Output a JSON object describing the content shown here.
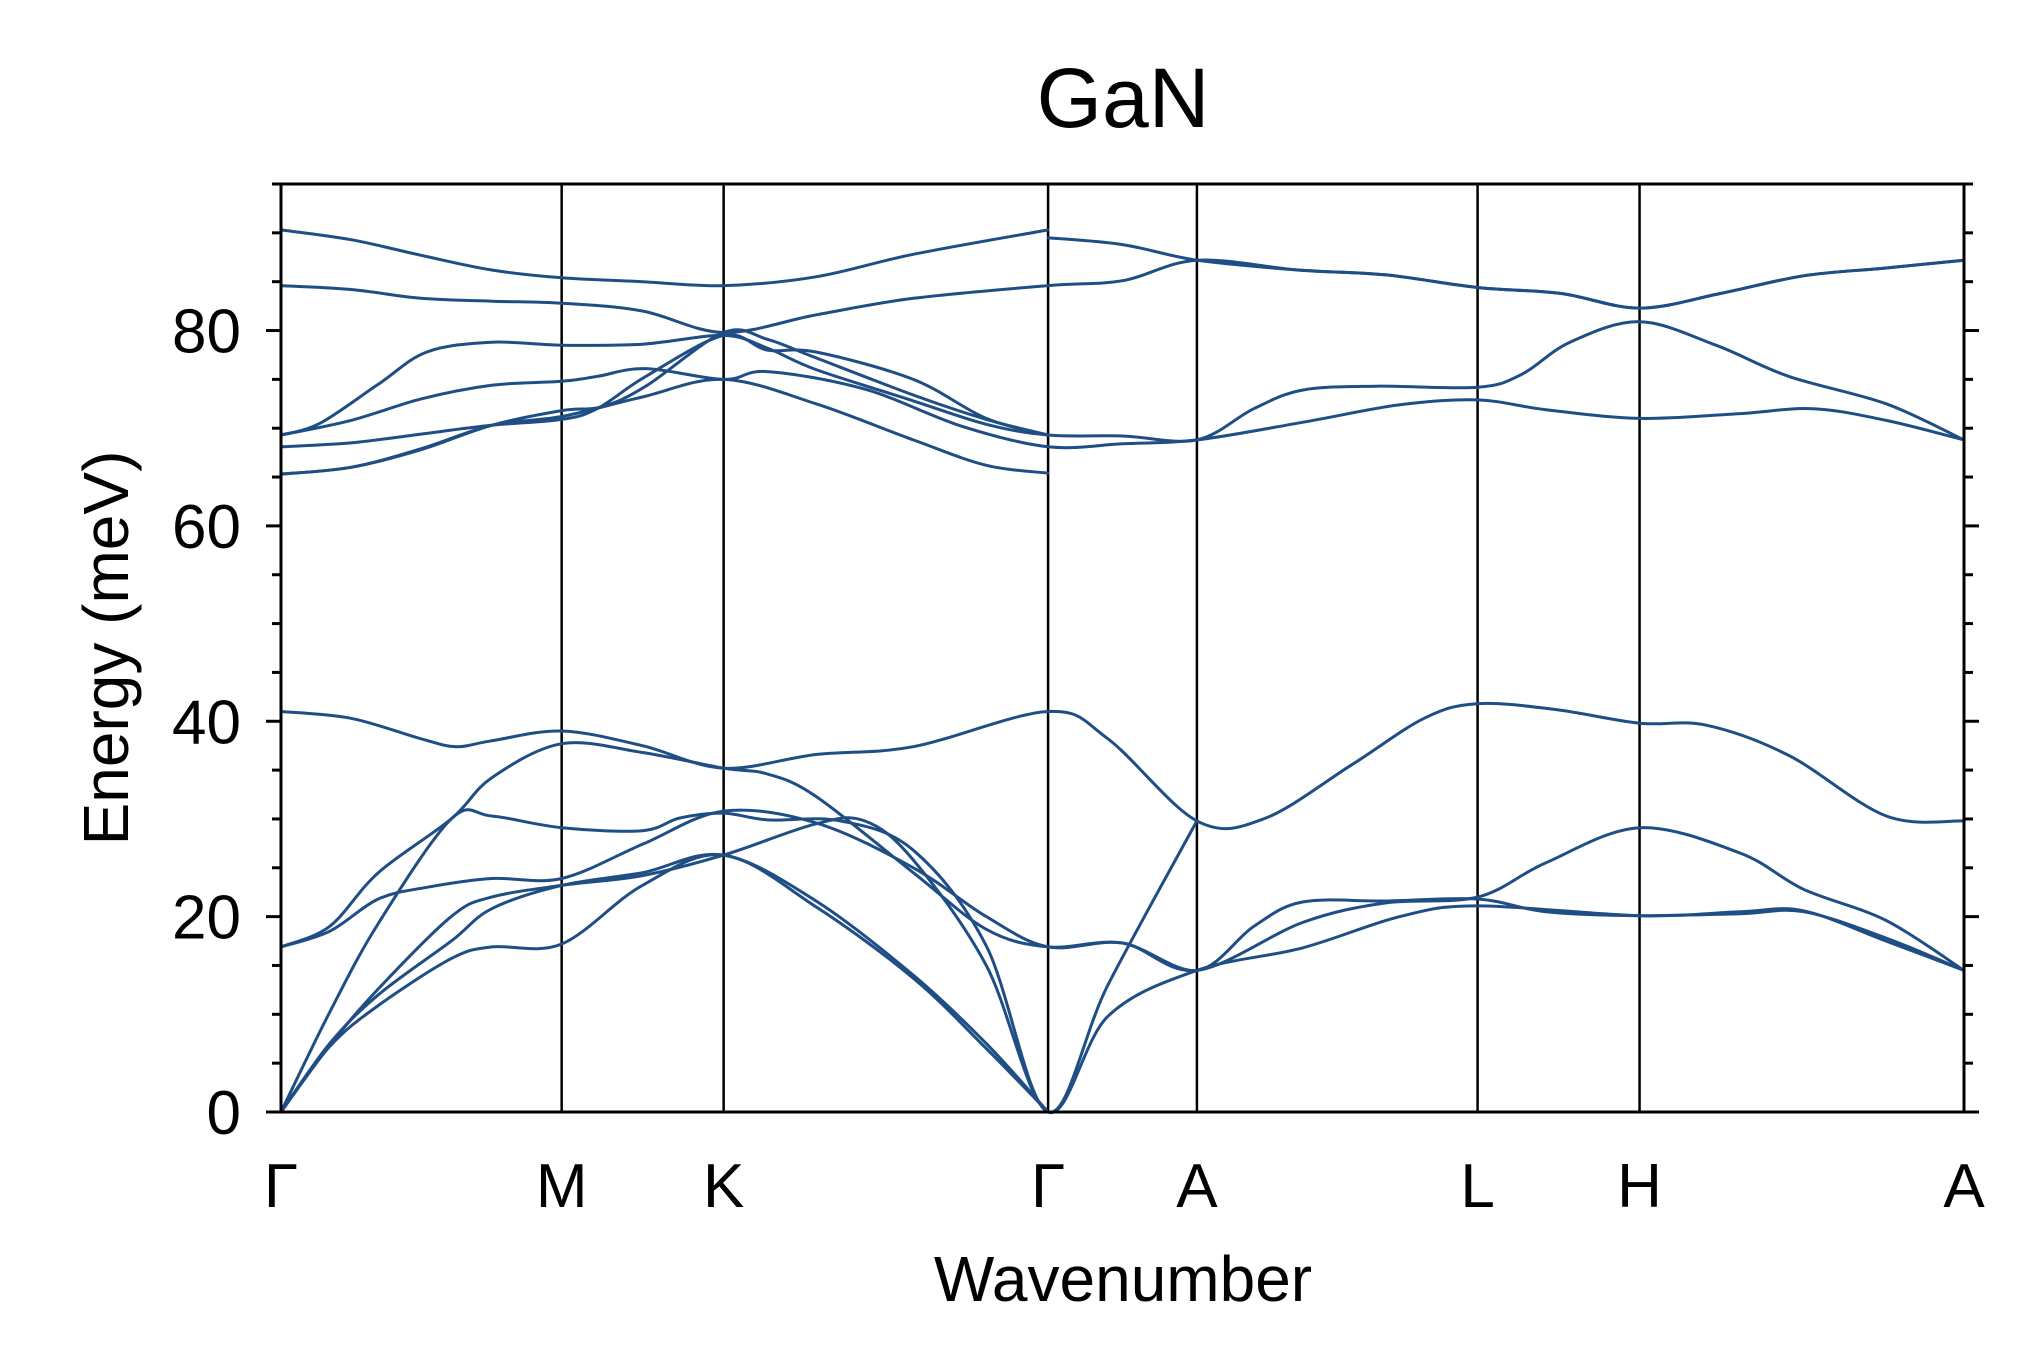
{
  "chart_data": {
    "type": "line",
    "title": "GaN",
    "xlabel": "Wavenumber",
    "ylabel": "Energy (meV)",
    "ylim": [
      0,
      95
    ],
    "yticks": [
      0,
      20,
      40,
      60,
      80
    ],
    "minor_ytick_step": 5,
    "grid": false,
    "line_color": "#1f4e85",
    "high_symmetry_points": [
      {
        "label": "Γ",
        "x": 0
      },
      {
        "label": "M",
        "x": 0.577
      },
      {
        "label": "K",
        "x": 0.91
      },
      {
        "label": "Γ",
        "x": 1.577
      },
      {
        "label": "A",
        "x": 1.883
      },
      {
        "label": "L",
        "x": 2.46
      },
      {
        "label": "H",
        "x": 2.793
      },
      {
        "label": "A",
        "x": 3.46
      }
    ],
    "series": [
      {
        "values": [
          [
            0,
            90.3
          ],
          [
            0.144,
            89.3
          ],
          [
            0.288,
            87.7
          ],
          [
            0.433,
            86.2
          ],
          [
            0.577,
            85.4
          ],
          [
            0.743,
            85.0
          ],
          [
            0.91,
            84.6
          ],
          [
            1.1,
            85.5
          ],
          [
            1.3,
            87.8
          ],
          [
            1.577,
            90.3
          ],
          [
            1.577,
            89.5
          ],
          [
            1.73,
            88.8
          ],
          [
            1.883,
            87.2
          ],
          [
            2.09,
            86.2
          ],
          [
            2.27,
            85.7
          ],
          [
            2.46,
            84.4
          ],
          [
            2.63,
            83.8
          ],
          [
            2.793,
            82.3
          ],
          [
            2.96,
            83.8
          ],
          [
            3.13,
            85.6
          ],
          [
            3.3,
            86.4
          ],
          [
            3.46,
            87.2
          ]
        ]
      },
      {
        "values": [
          [
            0,
            84.6
          ],
          [
            0.144,
            84.2
          ],
          [
            0.288,
            83.3
          ],
          [
            0.433,
            83.0
          ],
          [
            0.577,
            82.8
          ],
          [
            0.743,
            82.0
          ],
          [
            0.91,
            79.8
          ],
          [
            1.1,
            81.6
          ],
          [
            1.3,
            83.3
          ],
          [
            1.577,
            84.6
          ],
          [
            1.73,
            85.1
          ],
          [
            1.883,
            87.2
          ],
          [
            2.09,
            86.2
          ],
          [
            2.27,
            85.7
          ],
          [
            2.46,
            84.4
          ],
          [
            2.63,
            83.8
          ],
          [
            2.793,
            82.3
          ],
          [
            2.96,
            83.8
          ],
          [
            3.13,
            85.6
          ],
          [
            3.3,
            86.4
          ],
          [
            3.46,
            87.2
          ]
        ]
      },
      {
        "values": [
          [
            0,
            69.3
          ],
          [
            0.08,
            70.5
          ],
          [
            0.2,
            74.5
          ],
          [
            0.3,
            77.8
          ],
          [
            0.433,
            78.8
          ],
          [
            0.577,
            78.5
          ],
          [
            0.743,
            78.6
          ],
          [
            0.91,
            79.5
          ],
          [
            1.0,
            78.2
          ],
          [
            1.1,
            76.0
          ],
          [
            1.3,
            72.8
          ],
          [
            1.45,
            70.4
          ],
          [
            1.577,
            69.3
          ],
          [
            1.73,
            69.2
          ],
          [
            1.883,
            68.8
          ],
          [
            2.0,
            72.0
          ],
          [
            2.1,
            73.9
          ],
          [
            2.25,
            74.3
          ],
          [
            2.46,
            74.2
          ],
          [
            2.55,
            75.5
          ],
          [
            2.65,
            78.8
          ],
          [
            2.793,
            80.9
          ],
          [
            2.95,
            78.5
          ],
          [
            3.1,
            75.3
          ],
          [
            3.3,
            72.5
          ],
          [
            3.46,
            68.8
          ]
        ]
      },
      {
        "values": [
          [
            0,
            69.3
          ],
          [
            0.144,
            70.8
          ],
          [
            0.288,
            73.0
          ],
          [
            0.433,
            74.4
          ],
          [
            0.577,
            74.8
          ],
          [
            0.65,
            75.3
          ],
          [
            0.75,
            76.1
          ],
          [
            0.91,
            75.0
          ],
          [
            1.0,
            75.8
          ],
          [
            1.2,
            74.0
          ],
          [
            1.4,
            70.2
          ],
          [
            1.577,
            68.1
          ],
          [
            1.73,
            68.4
          ],
          [
            1.883,
            68.8
          ],
          [
            2.1,
            70.6
          ],
          [
            2.3,
            72.4
          ],
          [
            2.46,
            72.9
          ],
          [
            2.6,
            71.9
          ],
          [
            2.793,
            71.0
          ],
          [
            3.0,
            71.5
          ],
          [
            3.15,
            72.0
          ],
          [
            3.3,
            70.8
          ],
          [
            3.46,
            68.8
          ]
        ]
      },
      {
        "values": [
          [
            0,
            68.1
          ],
          [
            0.144,
            68.5
          ],
          [
            0.288,
            69.4
          ],
          [
            0.433,
            70.3
          ],
          [
            0.577,
            70.9
          ],
          [
            0.65,
            72.0
          ],
          [
            0.75,
            75.3
          ],
          [
            0.91,
            79.5
          ],
          [
            1.0,
            78.0
          ],
          [
            1.1,
            77.8
          ],
          [
            1.3,
            75.0
          ],
          [
            1.45,
            71.0
          ],
          [
            1.577,
            69.3
          ]
        ]
      },
      {
        "values": [
          [
            0,
            65.3
          ],
          [
            0.144,
            66.0
          ],
          [
            0.288,
            67.8
          ],
          [
            0.433,
            70.3
          ],
          [
            0.577,
            71.8
          ],
          [
            0.66,
            72.2
          ],
          [
            0.75,
            74.3
          ],
          [
            0.91,
            79.8
          ],
          [
            1.0,
            79.1
          ],
          [
            1.1,
            77.2
          ],
          [
            1.3,
            73.4
          ],
          [
            1.45,
            70.9
          ],
          [
            1.577,
            69.3
          ]
        ]
      },
      {
        "values": [
          [
            0,
            65.3
          ],
          [
            0.144,
            66.0
          ],
          [
            0.288,
            67.9
          ],
          [
            0.433,
            70.3
          ],
          [
            0.577,
            71.2
          ],
          [
            0.743,
            73.2
          ],
          [
            0.91,
            75.0
          ],
          [
            1.1,
            72.5
          ],
          [
            1.3,
            68.8
          ],
          [
            1.45,
            66.2
          ],
          [
            1.577,
            65.4
          ]
        ]
      },
      {
        "values": [
          [
            0,
            41.0
          ],
          [
            0.144,
            40.3
          ],
          [
            0.288,
            38.2
          ],
          [
            0.36,
            37.4
          ],
          [
            0.433,
            38.0
          ],
          [
            0.577,
            39.0
          ],
          [
            0.743,
            37.5
          ],
          [
            0.91,
            35.2
          ],
          [
            1.1,
            36.6
          ],
          [
            1.3,
            37.4
          ],
          [
            1.577,
            41.0
          ],
          [
            1.7,
            38.2
          ],
          [
            1.883,
            29.8
          ],
          [
            2.02,
            30.0
          ],
          [
            2.2,
            35.5
          ],
          [
            2.35,
            40.3
          ],
          [
            2.46,
            41.8
          ],
          [
            2.62,
            41.2
          ],
          [
            2.793,
            39.8
          ],
          [
            2.93,
            39.6
          ],
          [
            3.1,
            36.5
          ],
          [
            3.3,
            30.3
          ],
          [
            3.46,
            29.8
          ]
        ]
      },
      {
        "values": [
          [
            0,
            16.9
          ],
          [
            0.1,
            19.0
          ],
          [
            0.2,
            24.5
          ],
          [
            0.35,
            30.0
          ],
          [
            0.433,
            34.2
          ],
          [
            0.577,
            37.7
          ],
          [
            0.743,
            36.8
          ],
          [
            0.91,
            35.2
          ],
          [
            1.0,
            34.6
          ],
          [
            1.1,
            32.3
          ],
          [
            1.3,
            24.5
          ],
          [
            1.45,
            18.7
          ],
          [
            1.577,
            16.9
          ],
          [
            1.73,
            17.3
          ],
          [
            1.883,
            14.5
          ],
          [
            2.1,
            19.4
          ],
          [
            2.27,
            21.4
          ],
          [
            2.46,
            22.0
          ],
          [
            2.6,
            25.5
          ],
          [
            2.793,
            29.1
          ],
          [
            3.0,
            26.5
          ],
          [
            3.13,
            22.8
          ],
          [
            3.3,
            19.6
          ],
          [
            3.46,
            14.5
          ]
        ]
      },
      {
        "values": [
          [
            0,
            16.9
          ],
          [
            0.1,
            18.5
          ],
          [
            0.2,
            21.8
          ],
          [
            0.3,
            23.0
          ],
          [
            0.433,
            23.9
          ],
          [
            0.577,
            23.9
          ],
          [
            0.743,
            27.4
          ],
          [
            0.91,
            30.8
          ],
          [
            1.1,
            29.6
          ],
          [
            1.3,
            25.0
          ],
          [
            1.45,
            20.0
          ],
          [
            1.577,
            16.9
          ],
          [
            1.73,
            17.3
          ],
          [
            1.883,
            14.5
          ],
          [
            2.0,
            19.0
          ],
          [
            2.1,
            21.5
          ],
          [
            2.27,
            21.6
          ],
          [
            2.46,
            21.8
          ],
          [
            2.6,
            20.5
          ],
          [
            2.793,
            20.1
          ],
          [
            3.0,
            20.3
          ],
          [
            3.13,
            20.5
          ],
          [
            3.3,
            17.8
          ],
          [
            3.46,
            14.5
          ]
        ]
      },
      {
        "values": [
          [
            0,
            0
          ],
          [
            0.1,
            10.2
          ],
          [
            0.2,
            19.3
          ],
          [
            0.35,
            30.0
          ],
          [
            0.433,
            30.3
          ],
          [
            0.577,
            29.1
          ],
          [
            0.743,
            28.8
          ],
          [
            0.82,
            30.1
          ],
          [
            0.91,
            30.6
          ],
          [
            1.0,
            29.9
          ],
          [
            1.15,
            29.8
          ],
          [
            1.3,
            26.8
          ],
          [
            1.45,
            17.0
          ],
          [
            1.577,
            0
          ],
          [
            1.7,
            13.0
          ],
          [
            1.883,
            29.8
          ]
        ]
      },
      {
        "values": [
          [
            0,
            0
          ],
          [
            0.1,
            6.8
          ],
          [
            0.2,
            12.6
          ],
          [
            0.35,
            20.0
          ],
          [
            0.433,
            22.0
          ],
          [
            0.577,
            23.2
          ],
          [
            0.743,
            24.2
          ],
          [
            0.91,
            26.3
          ],
          [
            1.1,
            29.5
          ],
          [
            1.2,
            29.8
          ],
          [
            1.3,
            25.8
          ],
          [
            1.45,
            15.0
          ],
          [
            1.577,
            0
          ],
          [
            1.7,
            9.8
          ],
          [
            1.883,
            14.5
          ],
          [
            2.1,
            16.8
          ],
          [
            2.3,
            20.0
          ],
          [
            2.46,
            21.1
          ],
          [
            2.793,
            20.1
          ],
          [
            3.0,
            20.5
          ],
          [
            3.13,
            20.6
          ],
          [
            3.3,
            17.5
          ],
          [
            3.46,
            14.5
          ]
        ]
      },
      {
        "values": [
          [
            0,
            0
          ],
          [
            0.1,
            6.7
          ],
          [
            0.2,
            10.9
          ],
          [
            0.35,
            15.7
          ],
          [
            0.433,
            16.9
          ],
          [
            0.577,
            17.2
          ],
          [
            0.743,
            23.2
          ],
          [
            0.91,
            26.3
          ],
          [
            1.1,
            21.0
          ],
          [
            1.3,
            13.7
          ],
          [
            1.45,
            6.5
          ],
          [
            1.577,
            0
          ]
        ]
      },
      {
        "values": [
          [
            0,
            0
          ],
          [
            0.1,
            7.0
          ],
          [
            0.2,
            12.0
          ],
          [
            0.35,
            17.5
          ],
          [
            0.433,
            20.8
          ],
          [
            0.577,
            23.2
          ],
          [
            0.743,
            24.5
          ],
          [
            0.91,
            26.3
          ],
          [
            1.1,
            21.6
          ],
          [
            1.3,
            14.0
          ],
          [
            1.45,
            7.0
          ],
          [
            1.577,
            0
          ]
        ]
      }
    ]
  }
}
